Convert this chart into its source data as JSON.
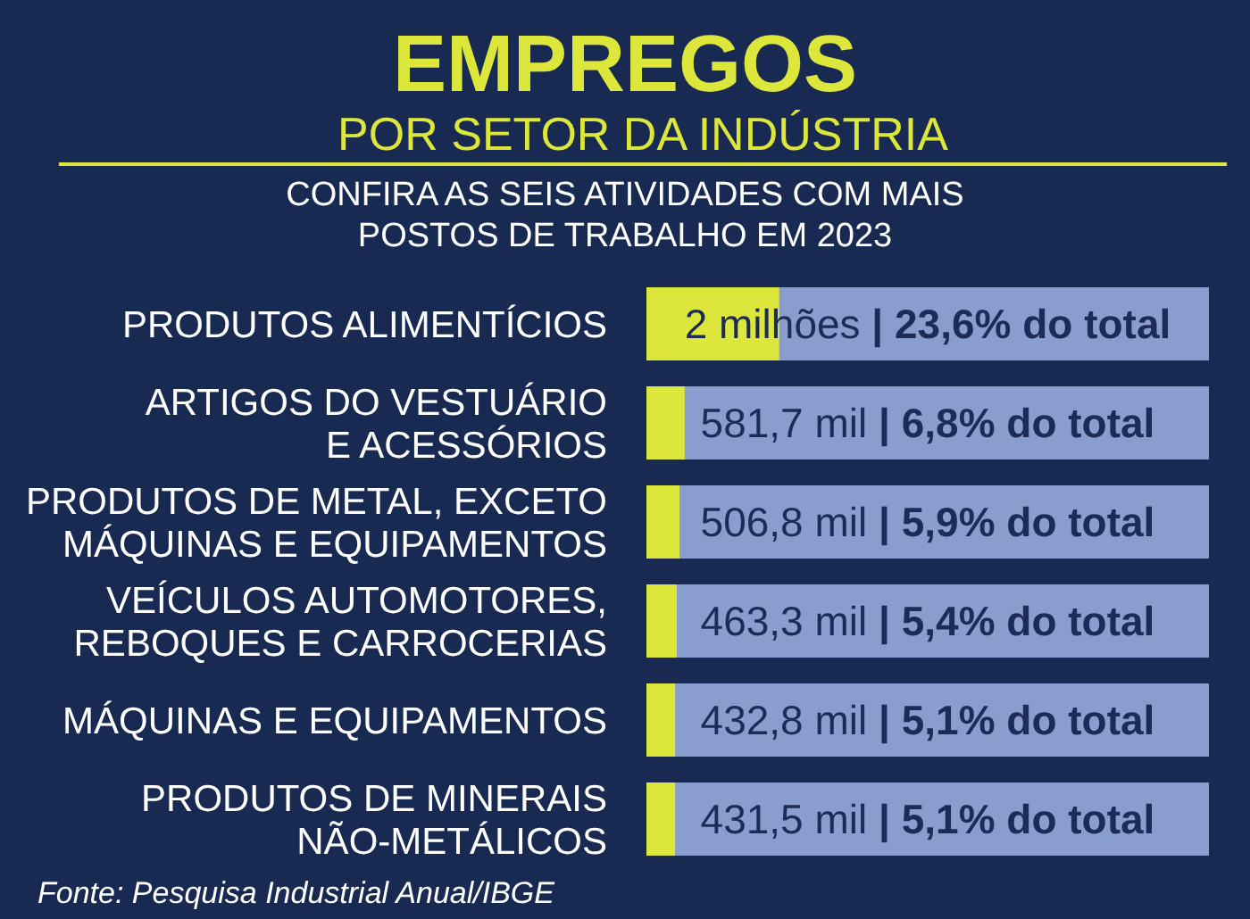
{
  "chart_data": {
    "type": "bar",
    "orientation": "horizontal",
    "title": "EMPREGOS",
    "subtitle": "POR SETOR DA INDÚSTRIA",
    "annotations": [
      "CONFIRA AS SEIS ATIVIDADES COM MAIS\nPOSTOS DE TRABALHO EM 2023",
      "Fonte: Pesquisa Industrial Anual/IBGE"
    ],
    "categories": [
      "PRODUTOS ALIMENTÍCIOS",
      "ARTIGOS DO VESTUÁRIO\nE ACESSÓRIOS",
      "PRODUTOS DE METAL, EXCETO\nMÁQUINAS E EQUIPAMENTOS",
      "VEÍCULOS AUTOMOTORES,\nREBOQUES E CARROCERIAS",
      "MÁQUINAS E EQUIPAMENTOS",
      "PRODUTOS DE MINERAIS\nNÃO-METÁLICOS"
    ],
    "values": [
      23.6,
      6.8,
      5.9,
      5.4,
      5.1,
      5.1
    ],
    "color": "#dde63b",
    "value_labels": [
      "2 milhões | 23,6% do total",
      "581,7 mil | 6,8% do total",
      "506,8 mil | 5,9% do total",
      "463,3 mil | 5,4% do total",
      "432,8 mil | 5,1% do total",
      "431,5 mil | 5,1% do total"
    ],
    "xlim": [
      0,
      100
    ],
    "tick_labels": "y"
  }
}
